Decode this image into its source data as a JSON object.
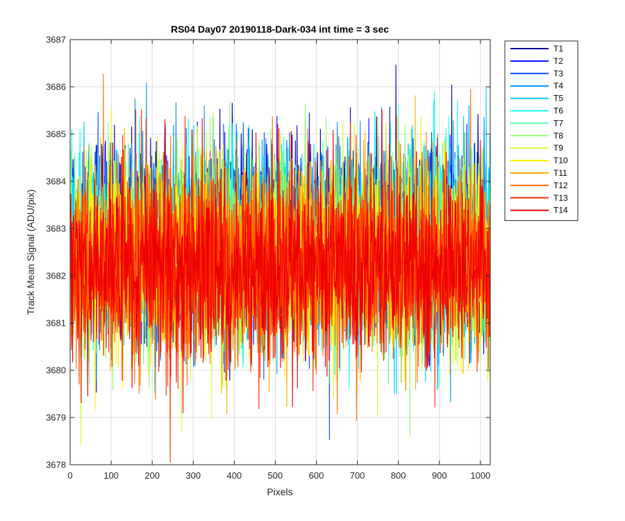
{
  "chart_data": {
    "type": "line",
    "title": "RS04 Day07 20190118-Dark-034 int time = 3 sec",
    "xlabel": "Pixels",
    "ylabel": "Track Mean Signal (ADU/pix)",
    "xlim": [
      0,
      1024
    ],
    "ylim": [
      3678,
      3687
    ],
    "xticks": [
      "0",
      "100",
      "200",
      "300",
      "400",
      "500",
      "600",
      "700",
      "800",
      "900",
      "1000"
    ],
    "yticks": [
      "3678",
      "3679",
      "3680",
      "3681",
      "3682",
      "3683",
      "3684",
      "3685",
      "3686",
      "3687"
    ],
    "grid": true,
    "legend_position": "outside-top-right",
    "x_points": 1024,
    "noise_model": {
      "mean": 3682.2,
      "std": 1.0
    },
    "series": [
      {
        "name": "T1",
        "color": "#00009f"
      },
      {
        "name": "T2",
        "color": "#0010ff"
      },
      {
        "name": "T3",
        "color": "#0050ff"
      },
      {
        "name": "T4",
        "color": "#0090ff"
      },
      {
        "name": "T5",
        "color": "#00cfff"
      },
      {
        "name": "T6",
        "color": "#10ffef"
      },
      {
        "name": "T7",
        "color": "#50ffaf"
      },
      {
        "name": "T8",
        "color": "#90ff6f"
      },
      {
        "name": "T9",
        "color": "#cfff30"
      },
      {
        "name": "T10",
        "color": "#ffef00"
      },
      {
        "name": "T11",
        "color": "#ffaf00"
      },
      {
        "name": "T12",
        "color": "#ff7000"
      },
      {
        "name": "T13",
        "color": "#ff3000"
      },
      {
        "name": "T14",
        "color": "#ef0000"
      }
    ]
  }
}
